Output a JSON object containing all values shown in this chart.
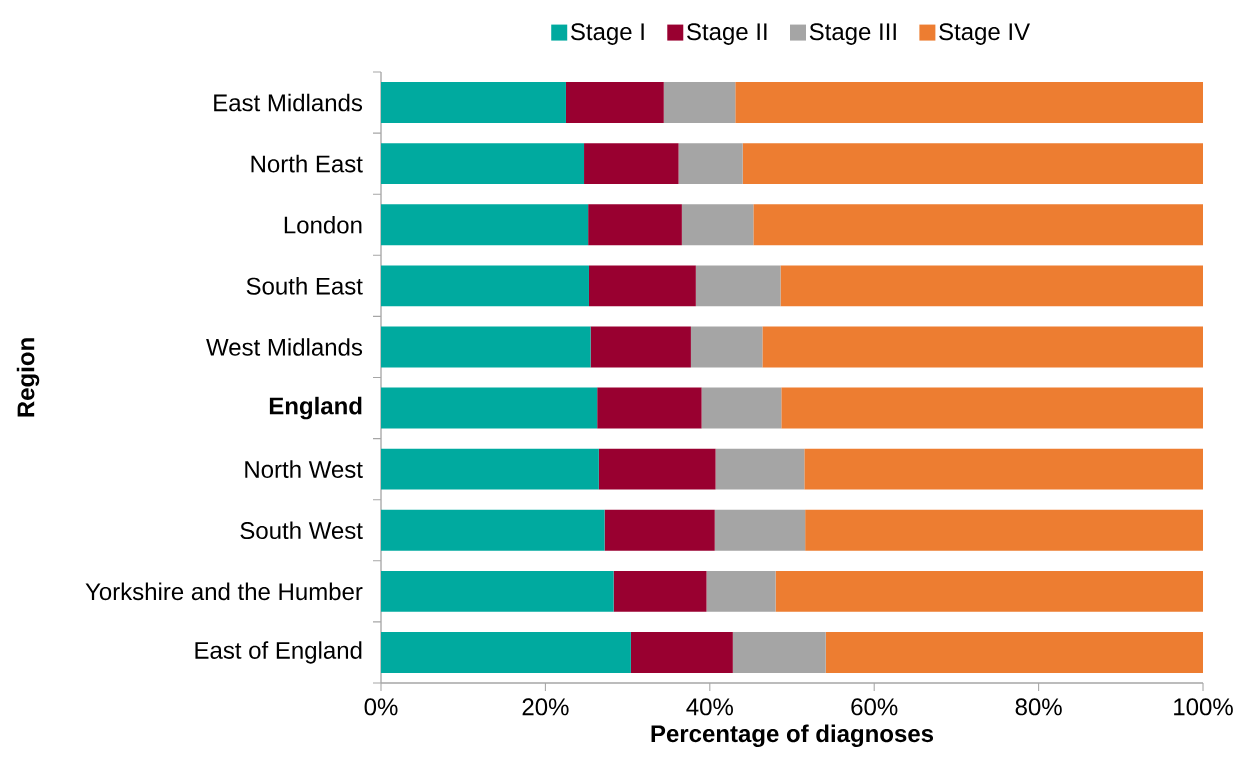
{
  "chart_data": {
    "type": "bar",
    "orientation": "horizontal",
    "stacked": true,
    "xlabel": "Percentage of diagnoses",
    "ylabel": "Region",
    "categories": [
      "East Midlands",
      "North East",
      "London",
      "South East",
      "West Midlands",
      "**England**",
      "North West",
      "South West",
      "Yorkshire and the Humber",
      "East of England"
    ],
    "series": [
      {
        "name": "Stage I",
        "color": "#00aa9f",
        "values": [
          22.5,
          24.7,
          25.2,
          25.3,
          25.5,
          26.3,
          26.5,
          27.2,
          28.3,
          30.4
        ]
      },
      {
        "name": "Stage II",
        "color": "#990030",
        "values": [
          11.9,
          11.5,
          11.4,
          13.0,
          12.2,
          12.7,
          14.2,
          13.4,
          11.3,
          12.4
        ]
      },
      {
        "name": "Stage III",
        "color": "#a5a5a5",
        "values": [
          8.7,
          7.8,
          8.7,
          10.3,
          8.7,
          9.7,
          10.8,
          11.0,
          8.4,
          11.3
        ]
      },
      {
        "name": "Stage IV",
        "color": "#ed7d31",
        "values": [
          56.9,
          56.0,
          54.7,
          51.4,
          53.6,
          51.3,
          48.5,
          48.4,
          52.0,
          45.9
        ]
      }
    ],
    "xlim": [
      0,
      100
    ],
    "xticks": [
      {
        "value": 0,
        "label": "0%"
      },
      {
        "value": 20,
        "label": "20%"
      },
      {
        "value": 40,
        "label": "40%"
      },
      {
        "value": 60,
        "label": "60%"
      },
      {
        "value": 80,
        "label": "80%"
      },
      {
        "value": 100,
        "label": "100%"
      }
    ],
    "grid": false,
    "legend": "top"
  }
}
